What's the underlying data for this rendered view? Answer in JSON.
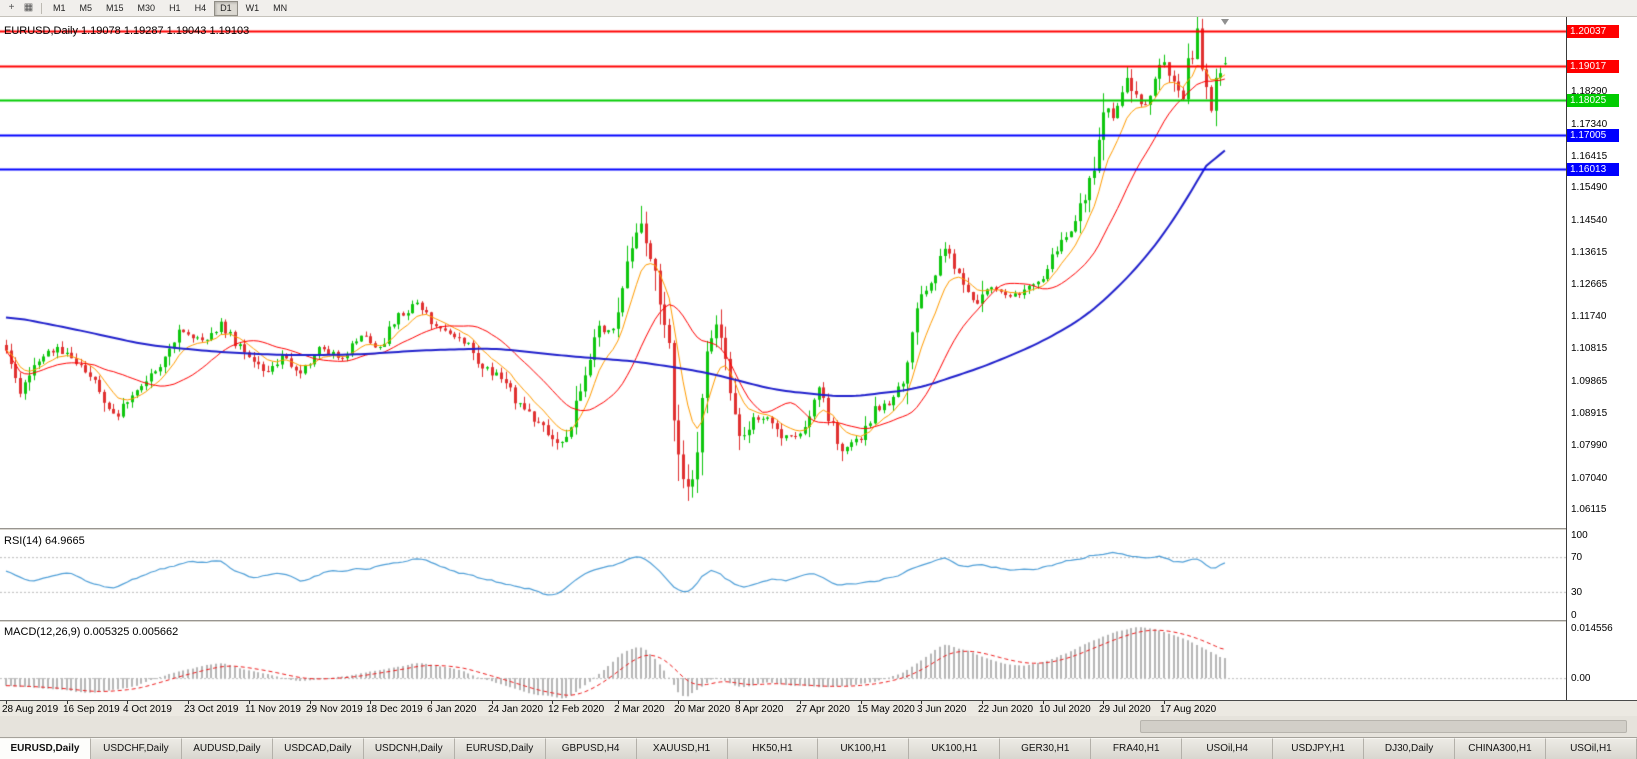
{
  "toolbar": {
    "icons": [
      {
        "name": "crosshair-icon",
        "glyph": "+"
      },
      {
        "name": "chart-type-icon",
        "glyph": "▦"
      }
    ],
    "timeframes": [
      "M1",
      "M5",
      "M15",
      "M30",
      "H1",
      "H4",
      "D1",
      "W1",
      "MN"
    ],
    "active_timeframe": "D1"
  },
  "colors": {
    "up_candle": "#0ec60e",
    "down_candle": "#e03030",
    "ma_fast": "#ff9c00",
    "ma_slow": "#ff0000",
    "ma_trend": "#2020cc",
    "rsi_line": "#4f9fd8",
    "macd_hist": "#b6b6b6",
    "macd_signal": "#ee1c1c"
  },
  "chart_data": {
    "type": "candlestick",
    "symbol": "EURUSD",
    "timeframe": "Daily",
    "title_line": "EURUSD,Daily 1.19078 1.19287 1.19043 1.19103",
    "ohlc_current": {
      "open": "1.19078",
      "high": "1.19287",
      "low": "1.19043",
      "close": "1.19103"
    },
    "bars_total": 262,
    "price_axis_range": {
      "max": 1.2045,
      "min": 1.056
    },
    "y_axis_ticks": [
      "1.18290",
      "1.17340",
      "1.16415",
      "1.15490",
      "1.14540",
      "1.13615",
      "1.12665",
      "1.11740",
      "1.10815",
      "1.09865",
      "1.08915",
      "1.07990",
      "1.07040",
      "1.06115"
    ],
    "horizontal_lines": [
      {
        "price": 1.20037,
        "label": "1.20037",
        "color": "#ff0000"
      },
      {
        "price": 1.19017,
        "label": "1.19017",
        "color": "#ff0000"
      },
      {
        "price": 1.18025,
        "label": "1.18025",
        "color": "#00cc00"
      },
      {
        "price": 1.17005,
        "label": "1.17005",
        "color": "#0000ff"
      },
      {
        "price": 1.16013,
        "label": "1.16013",
        "color": "#0000ff"
      }
    ],
    "x_axis_labels": [
      "28 Aug 2019",
      "16 Sep 2019",
      "4 Oct 2019",
      "23 Oct 2019",
      "11 Nov 2019",
      "29 Nov 2019",
      "18 Dec 2019",
      "6 Jan 2020",
      "24 Jan 2020",
      "12 Feb 2020",
      "2 Mar 2020",
      "20 Mar 2020",
      "8 Apr 2020",
      "27 Apr 2020",
      "15 May 2020",
      "3 Jun 2020",
      "22 Jun 2020",
      "10 Jul 2020",
      "29 Jul 2020",
      "17 Aug 2020"
    ],
    "x_label_bars": [
      0,
      13,
      26,
      39,
      52,
      65,
      78,
      91,
      104,
      117,
      131,
      144,
      157,
      170,
      183,
      196,
      209,
      222,
      235,
      248
    ],
    "close_anchors": [
      [
        0,
        1.108
      ],
      [
        3,
        1.0965
      ],
      [
        6,
        1.103
      ],
      [
        11,
        1.1085
      ],
      [
        15,
        1.104
      ],
      [
        19,
        1.0985
      ],
      [
        22,
        1.0905
      ],
      [
        24,
        1.089
      ],
      [
        29,
        1.0975
      ],
      [
        34,
        1.105
      ],
      [
        37,
        1.1125
      ],
      [
        42,
        1.1105
      ],
      [
        46,
        1.115
      ],
      [
        51,
        1.1065
      ],
      [
        55,
        1.101
      ],
      [
        59,
        1.1055
      ],
      [
        63,
        1.1015
      ],
      [
        67,
        1.1075
      ],
      [
        72,
        1.1055
      ],
      [
        76,
        1.1115
      ],
      [
        80,
        1.1085
      ],
      [
        84,
        1.1175
      ],
      [
        88,
        1.121
      ],
      [
        91,
        1.116
      ],
      [
        95,
        1.112
      ],
      [
        99,
        1.1095
      ],
      [
        102,
        1.1025
      ],
      [
        106,
        1.0995
      ],
      [
        110,
        1.0915
      ],
      [
        114,
        1.0865
      ],
      [
        118,
        1.0795
      ],
      [
        121,
        1.085
      ],
      [
        124,
        1.103
      ],
      [
        127,
        1.113
      ],
      [
        130,
        1.114
      ],
      [
        132,
        1.128
      ],
      [
        134,
        1.139
      ],
      [
        136,
        1.144
      ],
      [
        138,
        1.135
      ],
      [
        140,
        1.118
      ],
      [
        142,
        1.108
      ],
      [
        144,
        1.078
      ],
      [
        146,
        1.0645
      ],
      [
        148,
        1.08
      ],
      [
        150,
        1.105
      ],
      [
        152,
        1.114
      ],
      [
        154,
        1.103
      ],
      [
        157,
        1.08
      ],
      [
        160,
        1.0865
      ],
      [
        163,
        1.088
      ],
      [
        166,
        1.082
      ],
      [
        170,
        1.083
      ],
      [
        174,
        1.095
      ],
      [
        179,
        1.0785
      ],
      [
        183,
        1.0815
      ],
      [
        186,
        1.09
      ],
      [
        189,
        1.092
      ],
      [
        192,
        1.098
      ],
      [
        194,
        1.113
      ],
      [
        196,
        1.123
      ],
      [
        199,
        1.129
      ],
      [
        201,
        1.137
      ],
      [
        204,
        1.13
      ],
      [
        208,
        1.121
      ],
      [
        209,
        1.126
      ],
      [
        212,
        1.125
      ],
      [
        215,
        1.123
      ],
      [
        218,
        1.125
      ],
      [
        221,
        1.127
      ],
      [
        223,
        1.13
      ],
      [
        226,
        1.14
      ],
      [
        229,
        1.144
      ],
      [
        231,
        1.153
      ],
      [
        233,
        1.162
      ],
      [
        235,
        1.178
      ],
      [
        237,
        1.176
      ],
      [
        240,
        1.187
      ],
      [
        242,
        1.18
      ],
      [
        244,
        1.179
      ],
      [
        246,
        1.185
      ],
      [
        248,
        1.193
      ],
      [
        250,
        1.184
      ],
      [
        252,
        1.18
      ],
      [
        253,
        1.19
      ],
      [
        254,
        1.193
      ],
      [
        255,
        1.1995
      ],
      [
        256,
        1.191
      ],
      [
        257,
        1.182
      ],
      [
        258,
        1.179
      ],
      [
        259,
        1.185
      ],
      [
        260,
        1.1905
      ],
      [
        261,
        1.19103
      ]
    ],
    "ma_blue_anchors": [
      [
        0,
        1.1175
      ],
      [
        15,
        1.1135
      ],
      [
        30,
        1.109
      ],
      [
        45,
        1.107
      ],
      [
        60,
        1.106
      ],
      [
        75,
        1.1062
      ],
      [
        90,
        1.1075
      ],
      [
        105,
        1.108
      ],
      [
        120,
        1.1058
      ],
      [
        135,
        1.1042
      ],
      [
        150,
        1.101
      ],
      [
        165,
        1.0958
      ],
      [
        180,
        1.0938
      ],
      [
        195,
        1.0962
      ],
      [
        210,
        1.103
      ],
      [
        222,
        1.11
      ],
      [
        232,
        1.118
      ],
      [
        242,
        1.131
      ],
      [
        250,
        1.145
      ],
      [
        256,
        1.159
      ],
      [
        261,
        1.17
      ]
    ],
    "ma_periods": {
      "fast": 8,
      "slow": 20
    },
    "special_points": {
      "march_high": [
        136,
        1.1495
      ],
      "march_low": [
        146,
        1.0636
      ],
      "sept_high": [
        255,
        1.20035
      ]
    },
    "rsi": {
      "title": "RSI(14) 64.9665",
      "value": 64.9665,
      "ticks": [
        {
          "label": "100",
          "value": 100
        },
        {
          "label": "70",
          "value": 70
        },
        {
          "label": "30",
          "value": 30
        },
        {
          "label": "0",
          "value": 0
        }
      ],
      "levels": [
        70,
        30
      ],
      "anchors": [
        [
          0,
          55
        ],
        [
          5,
          40
        ],
        [
          13,
          52
        ],
        [
          22,
          33
        ],
        [
          29,
          48
        ],
        [
          37,
          62
        ],
        [
          46,
          65
        ],
        [
          53,
          45
        ],
        [
          59,
          53
        ],
        [
          63,
          42
        ],
        [
          69,
          52
        ],
        [
          78,
          58
        ],
        [
          88,
          68
        ],
        [
          95,
          55
        ],
        [
          102,
          45
        ],
        [
          110,
          37
        ],
        [
          118,
          25
        ],
        [
          124,
          50
        ],
        [
          134,
          70
        ],
        [
          136,
          73
        ],
        [
          139,
          60
        ],
        [
          144,
          32
        ],
        [
          146,
          28
        ],
        [
          150,
          52
        ],
        [
          152,
          55
        ],
        [
          157,
          35
        ],
        [
          163,
          45
        ],
        [
          168,
          43
        ],
        [
          172,
          52
        ],
        [
          179,
          36
        ],
        [
          183,
          41
        ],
        [
          190,
          48
        ],
        [
          196,
          60
        ],
        [
          201,
          69
        ],
        [
          205,
          60
        ],
        [
          209,
          62
        ],
        [
          215,
          55
        ],
        [
          221,
          57
        ],
        [
          226,
          64
        ],
        [
          231,
          69
        ],
        [
          235,
          75
        ],
        [
          240,
          74
        ],
        [
          244,
          66
        ],
        [
          248,
          72
        ],
        [
          251,
          60
        ],
        [
          254,
          68
        ],
        [
          255,
          72
        ],
        [
          257,
          57
        ],
        [
          259,
          55
        ],
        [
          261,
          65
        ]
      ]
    },
    "macd": {
      "title": "MACD(12,26,9) 0.005325 0.005662",
      "macd_value": 0.005325,
      "signal_value": 0.005662,
      "range": {
        "max": 0.0155,
        "min": -0.0055
      },
      "ticks": [
        {
          "label": "0.014556",
          "value": 0.014556
        },
        {
          "label": "0.00",
          "value": 0
        }
      ],
      "anchors": [
        [
          0,
          -0.002
        ],
        [
          10,
          -0.003
        ],
        [
          19,
          -0.0042
        ],
        [
          27,
          -0.0025
        ],
        [
          37,
          0.002
        ],
        [
          46,
          0.0042
        ],
        [
          53,
          0.0018
        ],
        [
          63,
          -0.001
        ],
        [
          71,
          0.0002
        ],
        [
          80,
          0.002
        ],
        [
          88,
          0.0042
        ],
        [
          95,
          0.003
        ],
        [
          104,
          -0.001
        ],
        [
          112,
          -0.0042
        ],
        [
          120,
          -0.0058
        ],
        [
          126,
          0.0
        ],
        [
          132,
          0.007
        ],
        [
          136,
          0.009
        ],
        [
          140,
          0.004
        ],
        [
          145,
          -0.0058
        ],
        [
          148,
          -0.0035
        ],
        [
          152,
          0.0005
        ],
        [
          157,
          -0.0028
        ],
        [
          163,
          -0.001
        ],
        [
          168,
          -0.002
        ],
        [
          174,
          -0.0025
        ],
        [
          180,
          -0.0022
        ],
        [
          186,
          -0.001
        ],
        [
          192,
          0.0015
        ],
        [
          197,
          0.006
        ],
        [
          201,
          0.0095
        ],
        [
          206,
          0.0075
        ],
        [
          211,
          0.0048
        ],
        [
          217,
          0.0032
        ],
        [
          223,
          0.0045
        ],
        [
          229,
          0.008
        ],
        [
          234,
          0.011
        ],
        [
          238,
          0.0128
        ],
        [
          242,
          0.014
        ],
        [
          246,
          0.0136
        ],
        [
          250,
          0.0118
        ],
        [
          254,
          0.0098
        ],
        [
          257,
          0.0078
        ],
        [
          259,
          0.0063
        ],
        [
          261,
          0.005325
        ]
      ]
    }
  },
  "tabs": [
    {
      "label": "EURUSD,Daily",
      "active": true
    },
    {
      "label": "USDCHF,Daily",
      "active": false
    },
    {
      "label": "AUDUSD,Daily",
      "active": false
    },
    {
      "label": "USDCAD,Daily",
      "active": false
    },
    {
      "label": "USDCNH,Daily",
      "active": false
    },
    {
      "label": "EURUSD,Daily",
      "active": false
    },
    {
      "label": "GBPUSD,H4",
      "active": false
    },
    {
      "label": "XAUUSD,H1",
      "active": false
    },
    {
      "label": "HK50,H1",
      "active": false
    },
    {
      "label": "UK100,H1",
      "active": false
    },
    {
      "label": "UK100,H1",
      "active": false
    },
    {
      "label": "GER30,H1",
      "active": false
    },
    {
      "label": "FRA40,H1",
      "active": false
    },
    {
      "label": "USOil,H4",
      "active": false
    },
    {
      "label": "USDJPY,H1",
      "active": false
    },
    {
      "label": "DJ30,Daily",
      "active": false
    },
    {
      "label": "CHINA300,H1",
      "active": false
    },
    {
      "label": "USOil,H1",
      "active": false
    }
  ]
}
